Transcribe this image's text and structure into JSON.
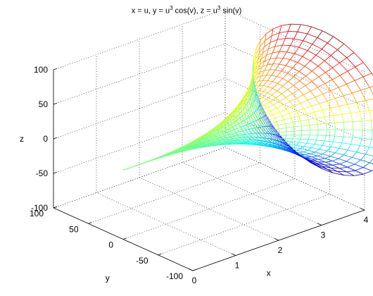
{
  "chart_data": {
    "type": "surface",
    "title": {
      "parts": [
        {
          "t": "x = u, y = u"
        },
        {
          "t": "3",
          "sup": true
        },
        {
          "t": " cos(v), z = u"
        },
        {
          "t": "3",
          "sup": true
        },
        {
          "t": " sin(v)"
        }
      ]
    },
    "xlabel": "x",
    "ylabel": "y",
    "zlabel": "z",
    "xlim": [
      0,
      4
    ],
    "ylim": [
      -100,
      100
    ],
    "zlim": [
      -100,
      100
    ],
    "xticks": [
      "0",
      "1",
      "2",
      "3",
      "4"
    ],
    "yticks": [
      "-100",
      "-50",
      "0",
      "50",
      "100"
    ],
    "zticks": [
      "-100",
      "-50",
      "0",
      "50",
      "100"
    ],
    "grid": true,
    "box": true,
    "u_range": [
      0,
      4.6416
    ],
    "v_range": [
      0,
      6.2832
    ],
    "u_steps": 40,
    "v_steps": 40,
    "colormap": "jet"
  }
}
